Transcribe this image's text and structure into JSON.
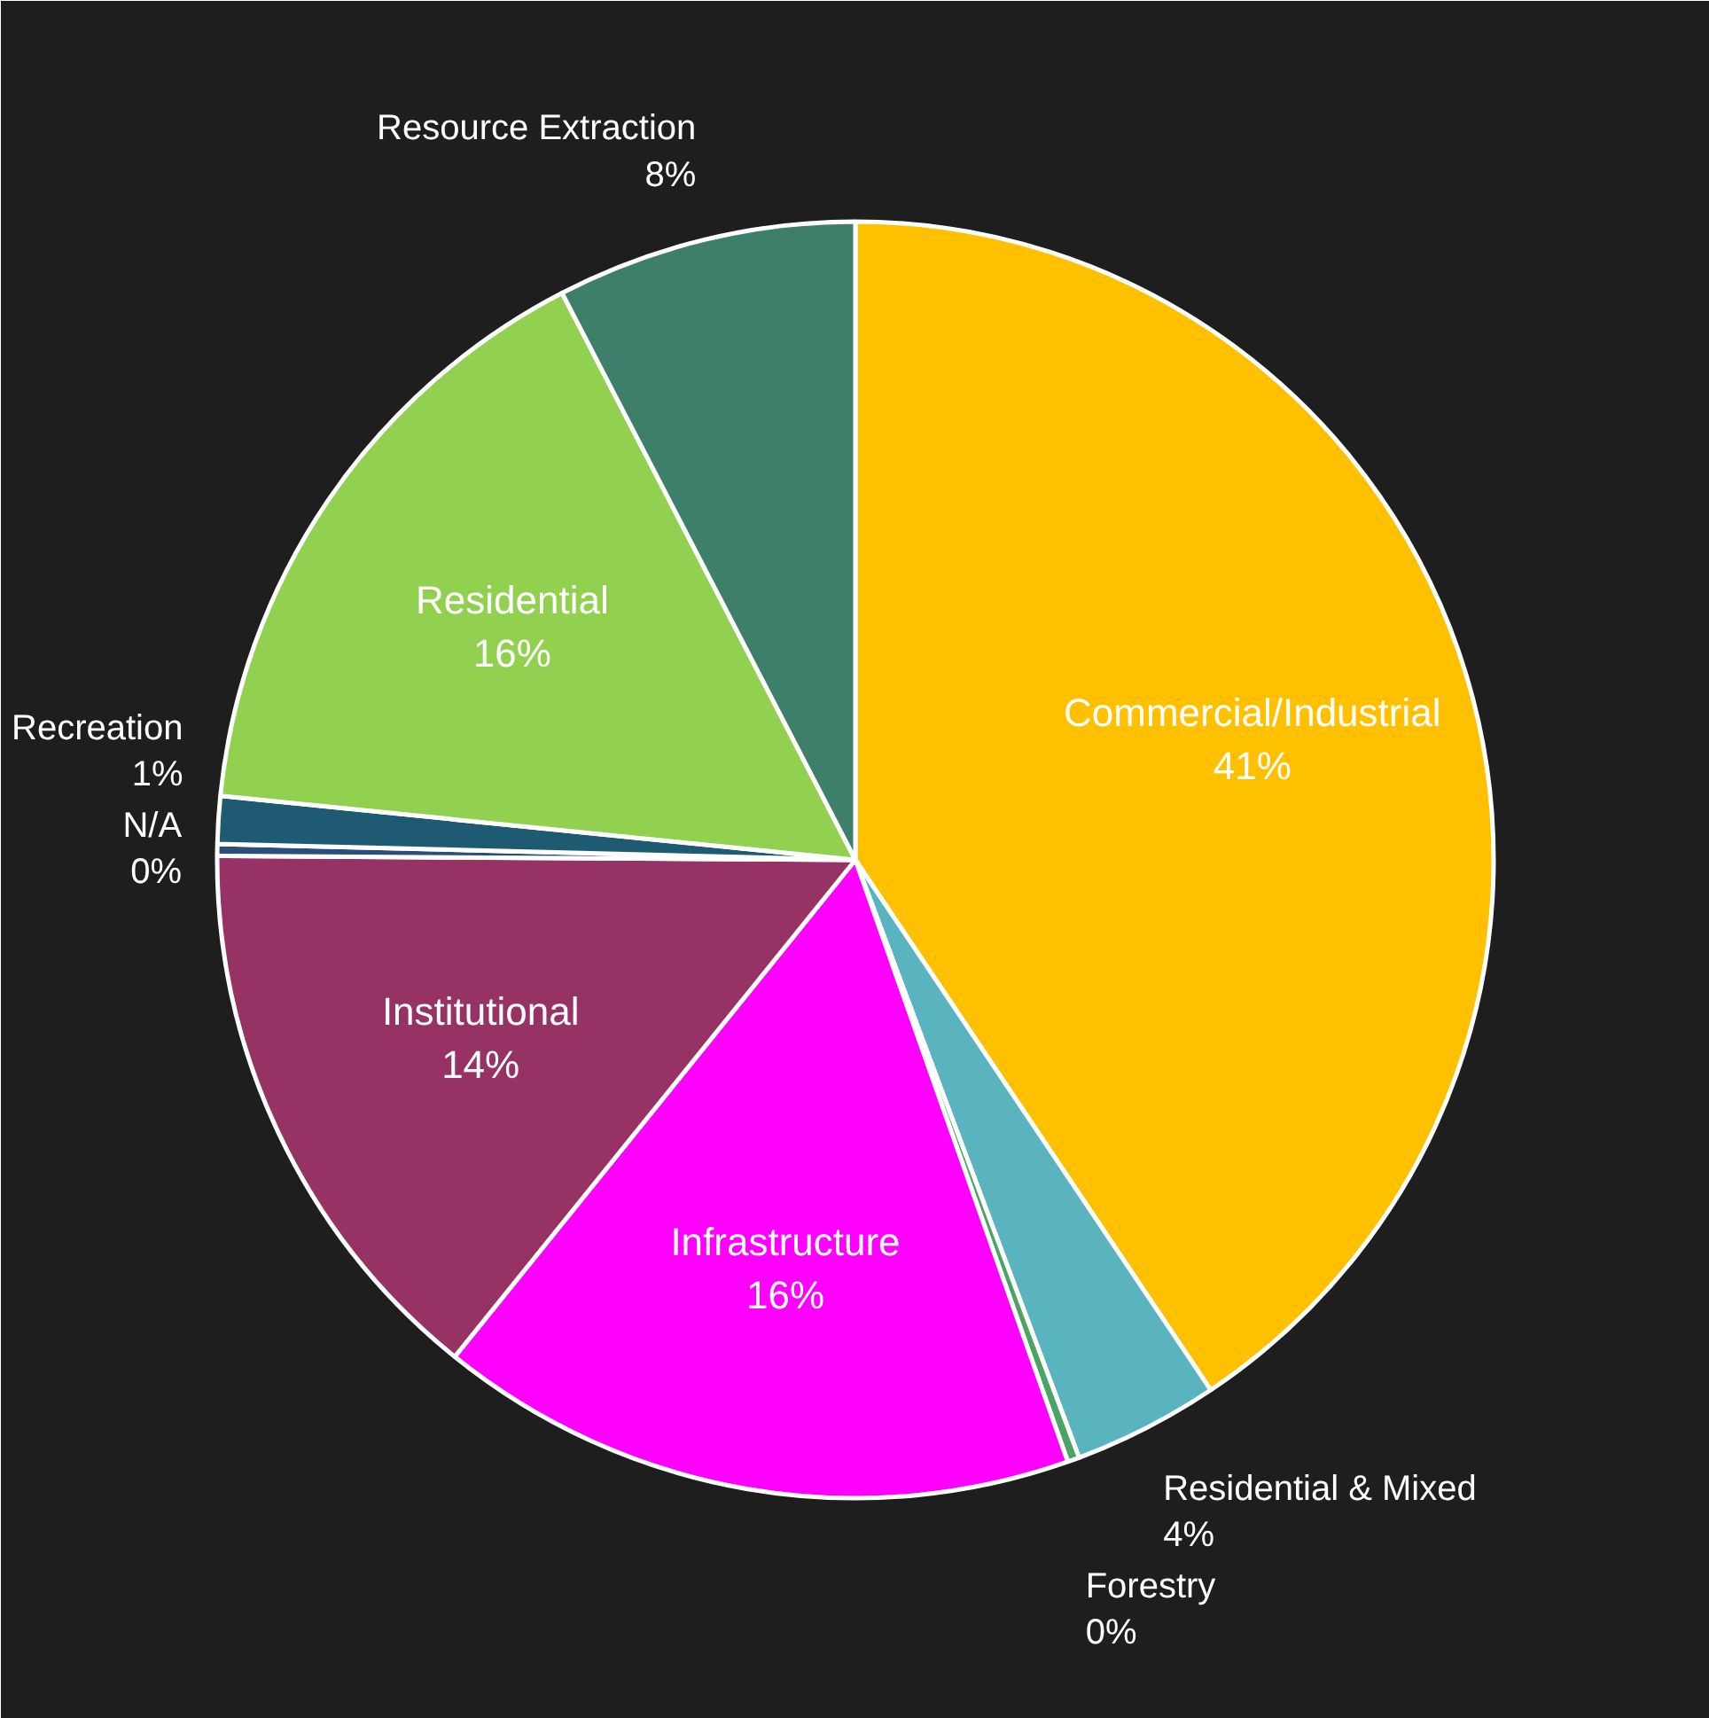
{
  "chart_data": {
    "type": "pie",
    "categories": [
      "Commercial/Industrial",
      "Residential & Mixed",
      "Forestry",
      "Infrastructure",
      "Institutional",
      "N/A",
      "Recreation",
      "Residential",
      "Resource Extraction"
    ],
    "values": [
      40.6,
      3.7,
      0.3,
      16.2,
      14.3,
      0.3,
      1.2,
      15.8,
      7.6
    ],
    "value_labels": [
      "41%",
      "4%",
      "0%",
      "16%",
      "14%",
      "0%",
      "1%",
      "16%",
      "8%"
    ],
    "colors": [
      "#ffc000",
      "#5ab4c0",
      "#4aa564",
      "#ff00ff",
      "#963264",
      "#2a4f7a",
      "#1f5a73",
      "#92d050",
      "#3e7f6c"
    ]
  }
}
